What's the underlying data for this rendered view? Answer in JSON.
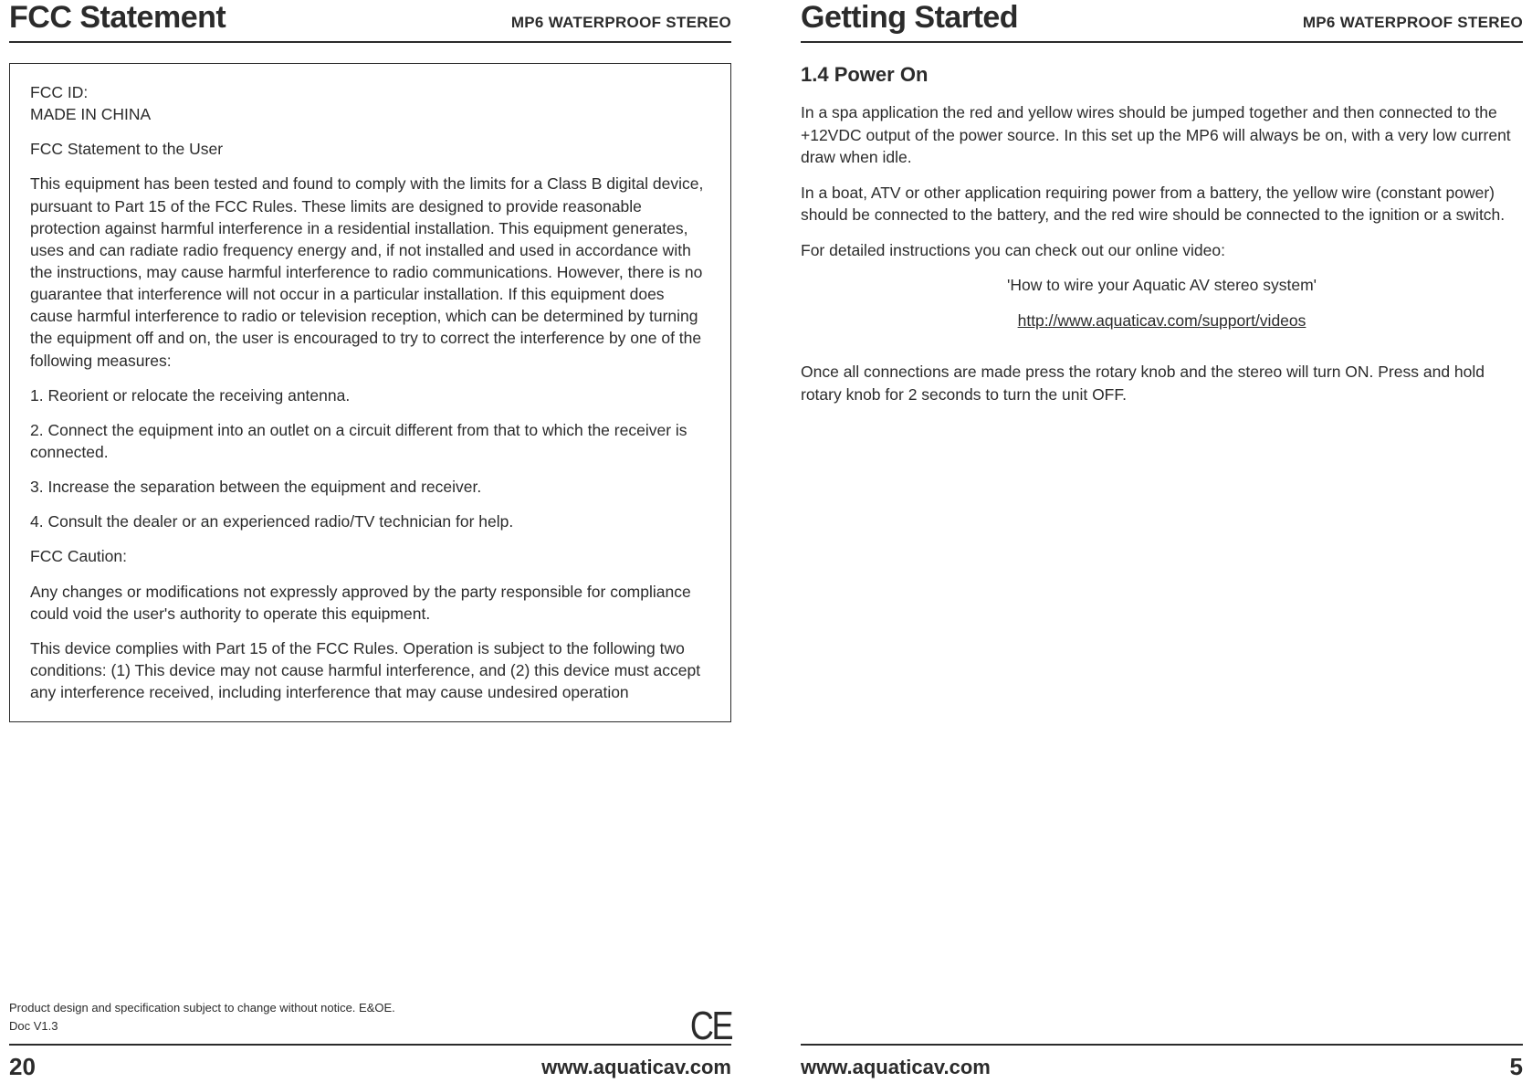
{
  "leftPage": {
    "header": {
      "title": "FCC Statement",
      "subtitle": "MP6 WATERPROOF STEREO"
    },
    "fcc": {
      "idLine1": "FCC ID:",
      "idLine2": "MADE IN CHINA",
      "stmtUser": "FCC Statement to the User",
      "para1": "This equipment has been tested and found to comply with the limits for a Class B digital device, pursuant to Part 15 of the FCC Rules. These limits are designed to provide reasonable protection against harmful interference in a residential installation. This equipment generates, uses and can radiate radio frequency energy and, if not installed and used in accordance with the instructions, may cause harmful interference to radio communications. However, there is no guarantee that interference will not occur in a particular installation. If this equipment does cause harmful interference to radio or television reception, which can be determined by turning the equipment off and on, the user is encouraged to try to correct the interference by one of the following measures:",
      "item1": "1. Reorient or relocate the receiving antenna.",
      "item2": "2. Connect the equipment into an outlet on a circuit different from that to which the receiver is connected.",
      "item3": "3. Increase the separation between the equipment and receiver.",
      "item4": "4. Consult the dealer or an experienced radio/TV technician for help.",
      "cautionHead": "FCC Caution:",
      "caution1": "Any changes or modifications not expressly approved by the party responsible for compliance could void the user's authority to operate this equipment.",
      "caution2": "This device complies with Part 15 of the FCC Rules. Operation is subject to the following two conditions: (1) This device may not cause harmful interference, and (2) this device must accept any interference received, including interference that may cause undesired operation"
    },
    "finePrint1": "Product design and specification subject to change without notice. E&OE.",
    "finePrint2": "Doc V1.3",
    "footer": {
      "pageNum": "20",
      "url": "www.aquaticav.com"
    },
    "ceMark": "CE"
  },
  "rightPage": {
    "header": {
      "title": "Getting Started",
      "subtitle": "MP6 WATERPROOF STEREO"
    },
    "section": {
      "heading": "1.4 Power On",
      "p1": "In a spa application the red and yellow wires should be jumped together and then connected to the +12VDC output of the power source. In this set up the MP6 will always be on, with a very low current draw when idle.",
      "p2": "In a boat, ATV or other application requiring power from a battery, the yellow wire (constant power) should be connected to the battery, and the red wire should be connected to the ignition or a switch.",
      "p3": "For detailed instructions you can check out our online video:",
      "videoTitle": "'How to wire your Aquatic AV stereo system'",
      "videoLink": "http://www.aquaticav.com/support/videos",
      "p4": "Once all connections are made press the rotary knob and the stereo will turn ON. Press and hold rotary knob for 2 seconds to turn the unit OFF."
    },
    "footer": {
      "pageNum": "5",
      "url": "www.aquaticav.com"
    }
  },
  "colors": {
    "text": "#2b2b2b",
    "background": "#ffffff",
    "rule": "#2b2b2b"
  }
}
